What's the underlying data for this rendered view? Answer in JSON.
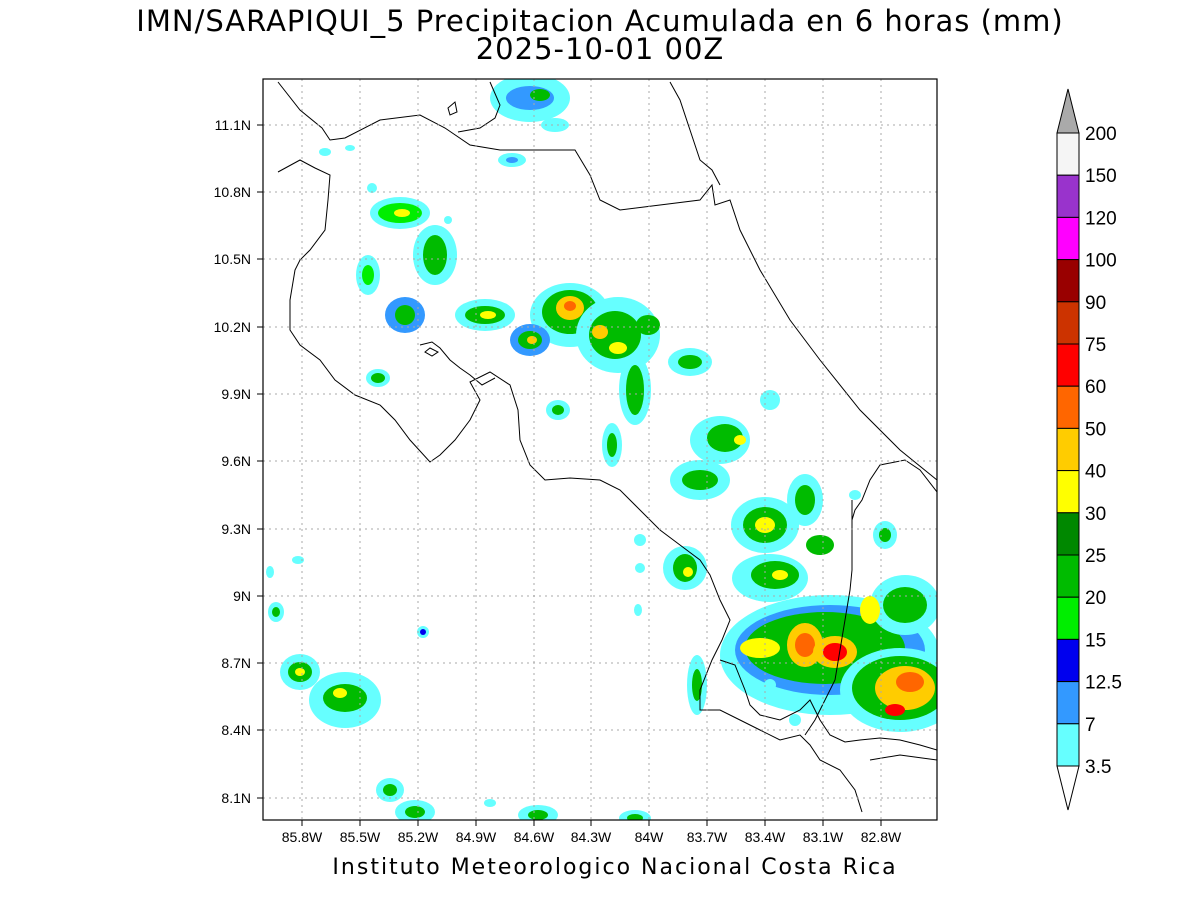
{
  "title": {
    "line1": "IMN/SARAPIQUI_5 Precipitacion Acumulada en 6 horas (mm)",
    "line2": "2025-10-01 00Z"
  },
  "footer": "Instituto Meteorologico Nacional Costa Rica",
  "map": {
    "lat_ticks": [
      "11.1N",
      "10.8N",
      "10.5N",
      "10.2N",
      "9.9N",
      "9.6N",
      "9.3N",
      "9N",
      "8.7N",
      "8.4N",
      "8.1N"
    ],
    "lon_ticks": [
      "85.8W",
      "85.5W",
      "85.2W",
      "84.9W",
      "84.6W",
      "84.3W",
      "84W",
      "83.7W",
      "83.4W",
      "83.1W",
      "82.8W"
    ],
    "gridlines": "dotted"
  },
  "colorbar": {
    "levels": [
      "3.5",
      "7",
      "12.5",
      "15",
      "20",
      "25",
      "30",
      "40",
      "50",
      "60",
      "75",
      "90",
      "100",
      "120",
      "150",
      "200"
    ],
    "colors": [
      "#ffffff",
      "#66ffff",
      "#3399ff",
      "#0000ee",
      "#00ee00",
      "#00bb00",
      "#008800",
      "#ffff00",
      "#ffcc00",
      "#ff6600",
      "#ff0000",
      "#cc3300",
      "#990000",
      "#ff00ff",
      "#9933cc",
      "#f5f5f5",
      "#aaaaaa"
    ]
  }
}
